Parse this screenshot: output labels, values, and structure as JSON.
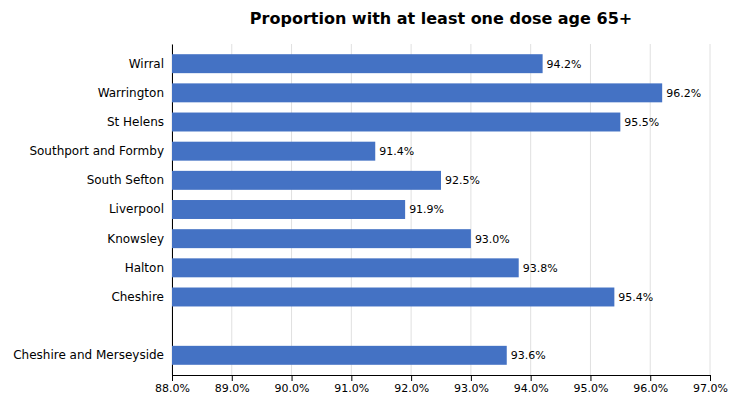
{
  "chart_data": {
    "type": "bar",
    "orientation": "horizontal",
    "title": "Proportion with at least one dose age 65+",
    "categories": [
      "Cheshire and Merseyside",
      null,
      "Cheshire",
      "Halton",
      "Knowsley",
      "Liverpool",
      "South Sefton",
      "Southport and Formby",
      "St Helens",
      "Warrington",
      "Wirral"
    ],
    "values": [
      93.6,
      null,
      95.4,
      93.8,
      93.0,
      91.9,
      92.5,
      91.4,
      95.5,
      96.2,
      94.2
    ],
    "value_labels": [
      "93.6%",
      null,
      "95.4%",
      "93.8%",
      "93.0%",
      "91.9%",
      "92.5%",
      "91.4%",
      "95.5%",
      "96.2%",
      "94.2%"
    ],
    "data_labels": true,
    "color": "#4472C4",
    "xlim": [
      88.0,
      97.0
    ],
    "xticks": [
      {
        "value": 88.0,
        "label": "88.0%"
      },
      {
        "value": 89.0,
        "label": "89.0%"
      },
      {
        "value": 90.0,
        "label": "90.0%"
      },
      {
        "value": 91.0,
        "label": "91.0%"
      },
      {
        "value": 92.0,
        "label": "92.0%"
      },
      {
        "value": 93.0,
        "label": "93.0%"
      },
      {
        "value": 94.0,
        "label": "94.0%"
      },
      {
        "value": 95.0,
        "label": "95.0%"
      },
      {
        "value": 96.0,
        "label": "96.0%"
      },
      {
        "value": 97.0,
        "label": "97.0%"
      }
    ],
    "grid": true
  }
}
